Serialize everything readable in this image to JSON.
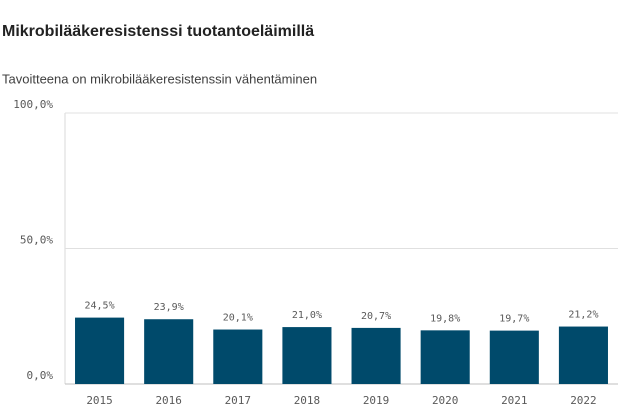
{
  "chart_data": {
    "type": "bar",
    "title": "Mikrobilääkeresistenssi tuotantoeläimillä",
    "subtitle": "Tavoitteena on mikrobilääkeresistenssin vähentäminen",
    "categories": [
      "2015",
      "2016",
      "2017",
      "2018",
      "2019",
      "2020",
      "2021",
      "2022"
    ],
    "values": [
      24.5,
      23.9,
      20.1,
      21.0,
      20.7,
      19.8,
      19.7,
      21.2
    ],
    "value_labels": [
      "24,5%",
      "23,9%",
      "20,1%",
      "21,0%",
      "20,7%",
      "19,8%",
      "19,7%",
      "21,2%"
    ],
    "color": "#004a6b",
    "ylim": [
      0,
      100
    ],
    "yticks": [
      {
        "value": 0,
        "label": "0,0%"
      },
      {
        "value": 50,
        "label": "50,0%"
      },
      {
        "value": 100,
        "label": "100,0%"
      }
    ],
    "grid": true
  }
}
